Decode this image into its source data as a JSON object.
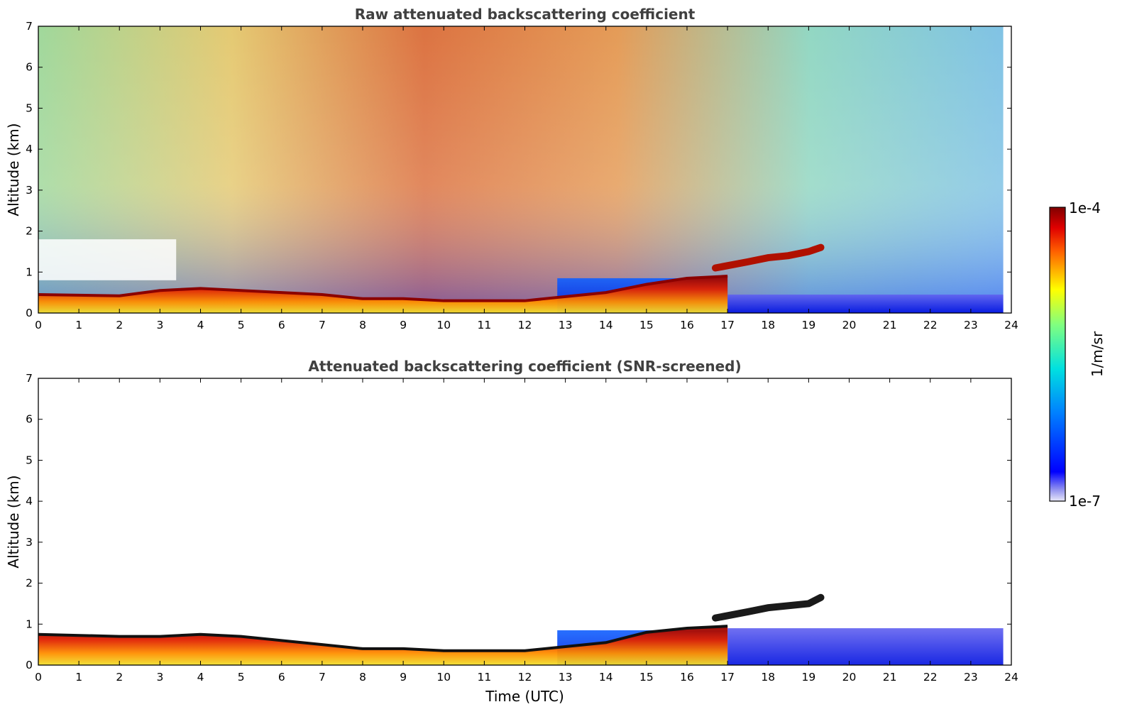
{
  "figure": {
    "xlabel": "Time (UTC)",
    "colorbar": {
      "label": "1/m/sr",
      "max_label": "1e-4",
      "min_label": "1e-7",
      "scale": "log",
      "colormap": "jet",
      "range": [
        1e-07,
        0.0001
      ]
    }
  },
  "chart_data": [
    {
      "type": "heatmap",
      "title": "Raw attenuated backscattering coefficient",
      "xlabel": "",
      "ylabel": "Altitude (km)",
      "xlim": [
        0,
        24
      ],
      "ylim": [
        0,
        7
      ],
      "x_ticks": [
        "0",
        "1",
        "2",
        "3",
        "4",
        "5",
        "6",
        "7",
        "8",
        "9",
        "10",
        "11",
        "12",
        "13",
        "14",
        "15",
        "16",
        "17",
        "18",
        "19",
        "20",
        "21",
        "22",
        "23",
        "24"
      ],
      "y_ticks": [
        "0",
        "1",
        "2",
        "3",
        "4",
        "5",
        "6",
        "7"
      ],
      "data_end_hour": 23.8,
      "screened": false,
      "boundary_layer_top_km": [
        [
          0,
          0.45
        ],
        [
          2,
          0.42
        ],
        [
          3,
          0.55
        ],
        [
          4,
          0.6
        ],
        [
          5,
          0.55
        ],
        [
          6,
          0.5
        ],
        [
          7,
          0.45
        ],
        [
          8,
          0.35
        ],
        [
          9,
          0.35
        ],
        [
          10,
          0.3
        ],
        [
          11,
          0.3
        ],
        [
          12,
          0.3
        ],
        [
          13,
          0.4
        ],
        [
          14,
          0.5
        ],
        [
          15,
          0.7
        ],
        [
          16,
          0.85
        ],
        [
          17,
          0.9
        ]
      ],
      "cloud_layer_km": [
        [
          16.7,
          1.1
        ],
        [
          17.5,
          1.25
        ],
        [
          18,
          1.35
        ],
        [
          18.5,
          1.4
        ],
        [
          19,
          1.5
        ],
        [
          19.3,
          1.6
        ]
      ],
      "noise_layer_color_top": "#d12a0c"
    },
    {
      "type": "heatmap",
      "title": "Attenuated backscattering coefficient (SNR-screened)",
      "xlabel": "Time (UTC)",
      "ylabel": "Altitude (km)",
      "xlim": [
        0,
        24
      ],
      "ylim": [
        0,
        7
      ],
      "x_ticks": [
        "0",
        "1",
        "2",
        "3",
        "4",
        "5",
        "6",
        "7",
        "8",
        "9",
        "10",
        "11",
        "12",
        "13",
        "14",
        "15",
        "16",
        "17",
        "18",
        "19",
        "20",
        "21",
        "22",
        "23",
        "24"
      ],
      "y_ticks": [
        "0",
        "1",
        "2",
        "3",
        "4",
        "5",
        "6",
        "7"
      ],
      "data_end_hour": 23.8,
      "screened": true,
      "boundary_layer_top_km": [
        [
          0,
          0.75
        ],
        [
          2,
          0.7
        ],
        [
          3,
          0.7
        ],
        [
          4,
          0.75
        ],
        [
          5,
          0.7
        ],
        [
          6,
          0.6
        ],
        [
          7,
          0.5
        ],
        [
          8,
          0.4
        ],
        [
          9,
          0.4
        ],
        [
          10,
          0.35
        ],
        [
          11,
          0.35
        ],
        [
          12,
          0.35
        ],
        [
          13,
          0.45
        ],
        [
          14,
          0.55
        ],
        [
          15,
          0.8
        ],
        [
          16,
          0.9
        ],
        [
          17,
          0.95
        ]
      ],
      "cloud_layer_km": [
        [
          16.7,
          1.15
        ],
        [
          17.5,
          1.3
        ],
        [
          18,
          1.4
        ],
        [
          18.5,
          1.45
        ],
        [
          19,
          1.5
        ],
        [
          19.3,
          1.65
        ]
      ]
    }
  ]
}
